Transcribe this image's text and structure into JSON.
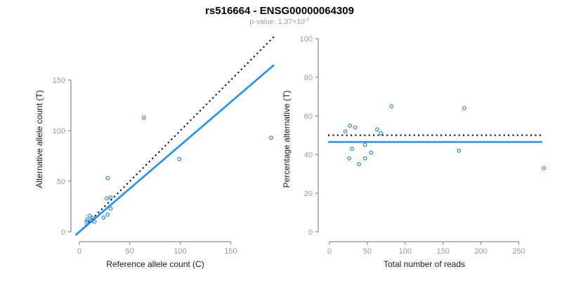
{
  "title": "rs516664 - ENSG00000064309",
  "subtitle": {
    "text": "p-value: 1.37×10",
    "exponent": "-2"
  },
  "colors": {
    "line_blue": "#1E90FF",
    "point_blue": "#1e82d8",
    "reference_black": "#000000",
    "axis_gray": "#8a8a8a",
    "tick_label_gray": "#9a9a9a",
    "subtitle_gray": "#9a9a9a",
    "title_black": "#000000"
  },
  "chart_data": [
    {
      "type": "scatter",
      "panel": "left",
      "xlabel": "Reference allele count (C)",
      "ylabel": "Alternative allele count (T)",
      "xticks": [
        0,
        50,
        100,
        150
      ],
      "yticks": [
        0,
        50,
        100,
        150
      ],
      "xlim": [
        0,
        193
      ],
      "ylim": [
        0,
        195
      ],
      "grid": false,
      "points": [
        [
          7,
          10
        ],
        [
          8,
          12
        ],
        [
          10,
          16
        ],
        [
          12,
          11
        ],
        [
          13,
          14
        ],
        [
          15,
          10
        ],
        [
          24,
          14
        ],
        [
          28,
          17
        ],
        [
          31,
          23
        ],
        [
          27,
          33
        ],
        [
          31,
          34
        ],
        [
          28,
          53
        ],
        [
          64,
          113
        ],
        [
          99,
          72
        ],
        [
          190,
          93
        ]
      ],
      "lines": [
        {
          "name": "identity-50pct-line",
          "style": "dotted",
          "color": "#000000",
          "slope": 1,
          "intercept": 0
        },
        {
          "name": "fit-line",
          "style": "solid",
          "color": "#1E90FF",
          "slope": 0.855,
          "intercept": 0
        }
      ]
    },
    {
      "type": "scatter",
      "panel": "right",
      "xlabel": "Total number of reads",
      "ylabel": "Percentage alternative (T)",
      "xticks": [
        0,
        50,
        100,
        150,
        200,
        250
      ],
      "yticks": [
        0,
        20,
        40,
        60,
        80,
        100
      ],
      "xlim": [
        0,
        285
      ],
      "ylim": [
        0,
        100
      ],
      "grid": false,
      "points": [
        [
          21,
          52
        ],
        [
          27,
          55
        ],
        [
          34,
          54
        ],
        [
          63,
          53
        ],
        [
          68,
          51
        ],
        [
          30,
          43
        ],
        [
          47,
          45
        ],
        [
          55,
          41
        ],
        [
          26,
          38
        ],
        [
          47,
          38
        ],
        [
          39,
          35
        ],
        [
          82,
          65
        ],
        [
          178,
          64
        ],
        [
          171,
          42
        ],
        [
          283,
          33
        ]
      ],
      "lines": [
        {
          "name": "reference-50pct-line",
          "style": "dotted",
          "color": "#000000",
          "y": 50
        },
        {
          "name": "mean-percentage-line",
          "style": "solid",
          "color": "#1E90FF",
          "y": 46.5
        }
      ]
    }
  ]
}
